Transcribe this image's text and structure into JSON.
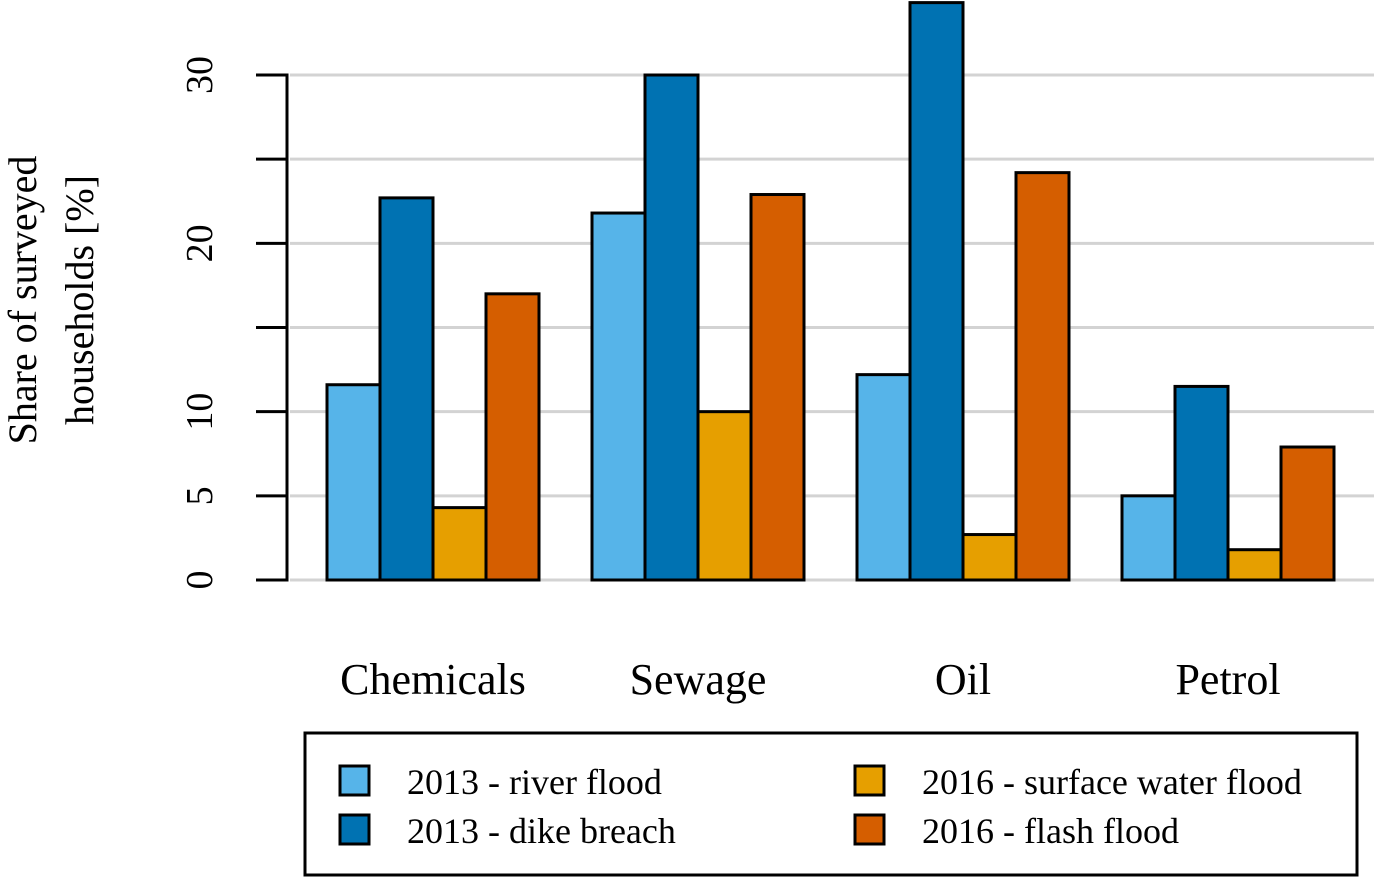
{
  "chart_data": {
    "type": "bar",
    "title": "",
    "xlabel": "",
    "ylabel": [
      "Share of surveyed",
      "households [%]"
    ],
    "ylim": [
      0,
      34.5
    ],
    "yticks": [
      0,
      5,
      10,
      15,
      20,
      25,
      30
    ],
    "ytick_labels": [
      "0",
      "5",
      "10",
      "",
      "20",
      "",
      "30"
    ],
    "grid": true,
    "legend_position": "bottom",
    "categories": [
      "Chemicals",
      "Sewage",
      "Oil",
      "Petrol"
    ],
    "series": [
      {
        "name": "2013 - river flood",
        "color": "#56B4E9",
        "values": [
          11.6,
          21.8,
          12.2,
          5.0
        ]
      },
      {
        "name": "2013 - dike breach",
        "color": "#0072B2",
        "values": [
          22.7,
          30.0,
          34.3,
          11.5
        ]
      },
      {
        "name": "2016 - surface water flood",
        "color": "#E69F00",
        "values": [
          4.3,
          10.0,
          2.7,
          1.8
        ]
      },
      {
        "name": "2016 - flash flood",
        "color": "#D55E00",
        "values": [
          17.0,
          22.9,
          24.2,
          7.9
        ]
      }
    ],
    "legend_order": [
      0,
      2,
      1,
      3
    ]
  }
}
